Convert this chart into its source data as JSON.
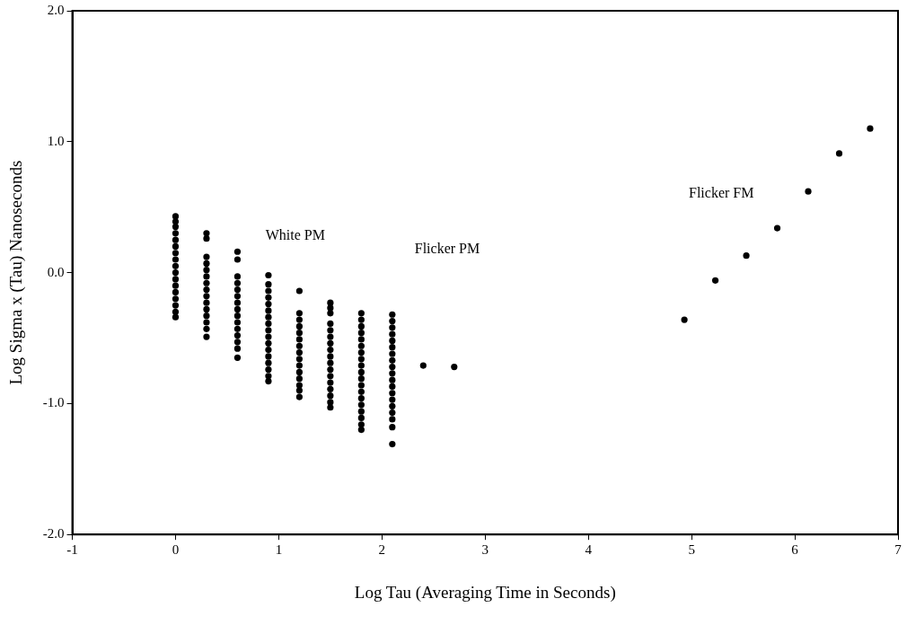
{
  "chart_data": {
    "type": "scatter",
    "xlabel": "Log Tau (Averaging Time in Seconds)",
    "ylabel": "Log Sigma x (Tau) Nanoseconds",
    "xlim": [
      -1,
      7
    ],
    "xticks": [
      -1,
      0,
      1,
      2,
      3,
      4,
      5,
      6,
      7
    ],
    "ylim": [
      -2,
      2
    ],
    "yticks": [
      {
        "value": -2,
        "label": "-2.0"
      },
      {
        "value": -1,
        "label": "-1.0"
      },
      {
        "value": 0,
        "label": "0.0"
      },
      {
        "value": 1,
        "label": "1.0"
      },
      {
        "value": 2,
        "label": "2.0"
      }
    ],
    "grid": false,
    "legend": false,
    "marker": "circle",
    "annotations": [
      "White PM",
      "Flicker PM",
      "Flicker FM"
    ],
    "series": [
      {
        "color": "#000000",
        "x": [
          0,
          0,
          0,
          0,
          0,
          0,
          0,
          0,
          0,
          0,
          0,
          0,
          0,
          0,
          0,
          0,
          0,
          0.3,
          0.3,
          0.3,
          0.3,
          0.3,
          0.3,
          0.3,
          0.3,
          0.3,
          0.3,
          0.3,
          0.3,
          0.3,
          0.3,
          0.3,
          0.6,
          0.6,
          0.6,
          0.6,
          0.6,
          0.6,
          0.6,
          0.6,
          0.6,
          0.6,
          0.6,
          0.6,
          0.6,
          0.6,
          0.6,
          0.9,
          0.9,
          0.9,
          0.9,
          0.9,
          0.9,
          0.9,
          0.9,
          0.9,
          0.9,
          0.9,
          0.9,
          0.9,
          0.9,
          0.9,
          0.9,
          0.9,
          1.2,
          1.2,
          1.2,
          1.2,
          1.2,
          1.2,
          1.2,
          1.2,
          1.2,
          1.2,
          1.2,
          1.2,
          1.2,
          1.2,
          1.2,
          1.5,
          1.5,
          1.5,
          1.5,
          1.5,
          1.5,
          1.5,
          1.5,
          1.5,
          1.5,
          1.5,
          1.5,
          1.5,
          1.5,
          1.5,
          1.5,
          1.5,
          1.8,
          1.8,
          1.8,
          1.8,
          1.8,
          1.8,
          1.8,
          1.8,
          1.8,
          1.8,
          1.8,
          1.8,
          1.8,
          1.8,
          1.8,
          1.8,
          1.8,
          1.8,
          1.8,
          2.1,
          2.1,
          2.1,
          2.1,
          2.1,
          2.1,
          2.1,
          2.1,
          2.1,
          2.1,
          2.1,
          2.1,
          2.1,
          2.1,
          2.1,
          2.1,
          2.1,
          2.1,
          2.1,
          2.4,
          2.7,
          4.93,
          5.23,
          5.53,
          5.83,
          6.13,
          6.43,
          6.73
        ],
        "values": [
          0.43,
          0.39,
          0.35,
          0.3,
          0.25,
          0.2,
          0.15,
          0.1,
          0.05,
          0,
          -0.05,
          -0.1,
          -0.15,
          -0.2,
          -0.25,
          -0.3,
          -0.34,
          0.3,
          0.26,
          0.12,
          0.07,
          0.02,
          -0.03,
          -0.08,
          -0.13,
          -0.18,
          -0.23,
          -0.28,
          -0.33,
          -0.38,
          -0.43,
          -0.49,
          0.16,
          0.1,
          -0.03,
          -0.08,
          -0.13,
          -0.18,
          -0.23,
          -0.28,
          -0.33,
          -0.38,
          -0.43,
          -0.48,
          -0.53,
          -0.58,
          -0.65,
          -0.02,
          -0.09,
          -0.14,
          -0.19,
          -0.24,
          -0.29,
          -0.34,
          -0.39,
          -0.44,
          -0.49,
          -0.54,
          -0.59,
          -0.64,
          -0.69,
          -0.74,
          -0.79,
          -0.83,
          -0.14,
          -0.31,
          -0.36,
          -0.41,
          -0.46,
          -0.51,
          -0.56,
          -0.61,
          -0.66,
          -0.71,
          -0.76,
          -0.81,
          -0.86,
          -0.9,
          -0.95,
          -0.23,
          -0.27,
          -0.31,
          -0.39,
          -0.44,
          -0.49,
          -0.54,
          -0.59,
          -0.64,
          -0.69,
          -0.74,
          -0.79,
          -0.84,
          -0.89,
          -0.94,
          -0.99,
          -1.03,
          -0.31,
          -0.36,
          -0.41,
          -0.46,
          -0.51,
          -0.56,
          -0.61,
          -0.66,
          -0.71,
          -0.76,
          -0.81,
          -0.86,
          -0.91,
          -0.96,
          -1.01,
          -1.06,
          -1.11,
          -1.16,
          -1.2,
          -0.32,
          -0.37,
          -0.42,
          -0.47,
          -0.52,
          -0.57,
          -0.62,
          -0.67,
          -0.72,
          -0.77,
          -0.82,
          -0.87,
          -0.92,
          -0.97,
          -1.02,
          -1.07,
          -1.12,
          -1.18,
          -1.31,
          -0.71,
          -0.72,
          -0.36,
          -0.06,
          0.13,
          0.34,
          0.62,
          0.91,
          1.1
        ]
      }
    ]
  }
}
